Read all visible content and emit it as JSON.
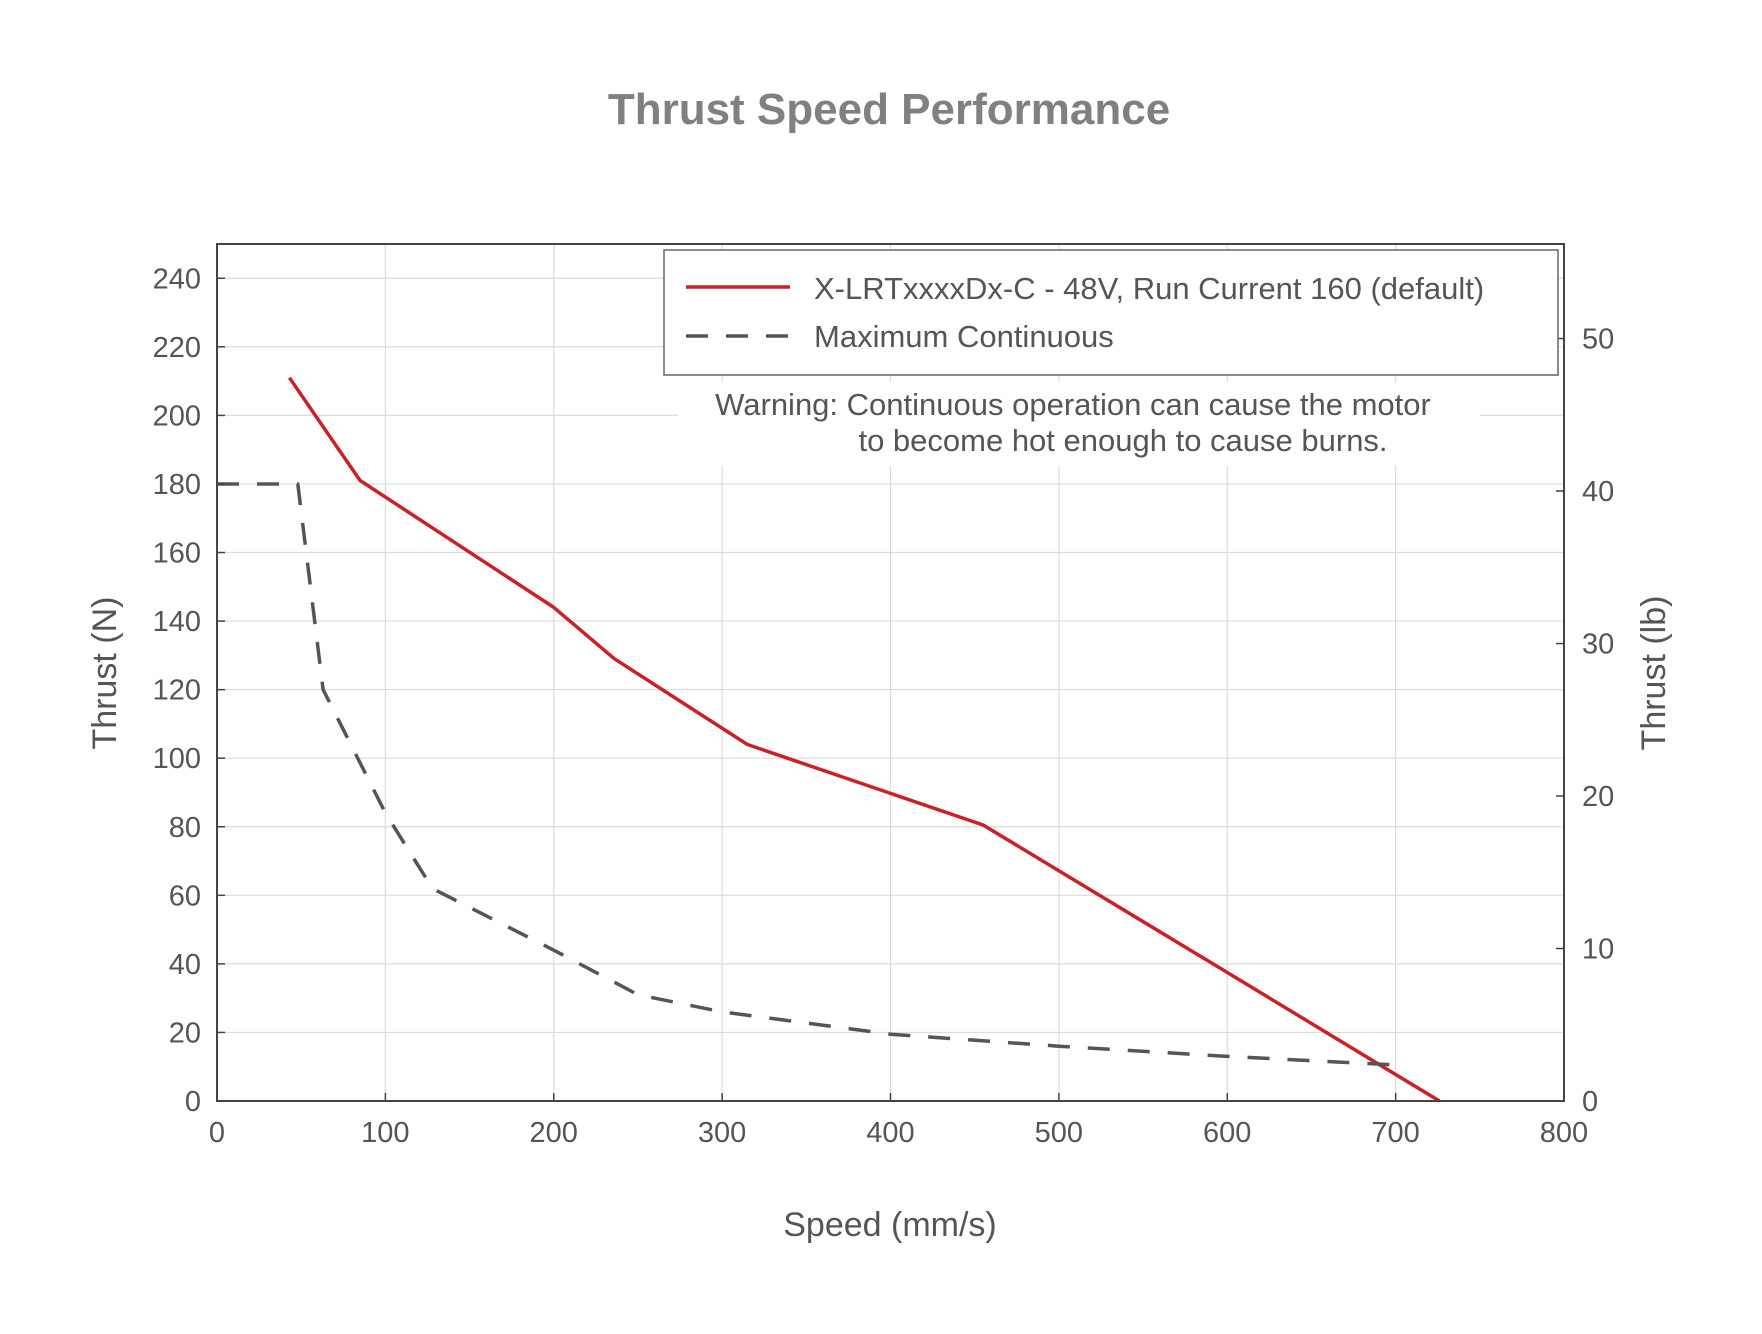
{
  "chart_data": {
    "type": "line",
    "title": "Thrust Speed Performance",
    "xlabel": "Speed (mm/s)",
    "ylabel": "Thrust (N)",
    "ylabel_right": "Thrust (lb)",
    "xlim": [
      0,
      800
    ],
    "ylim": [
      0,
      250
    ],
    "ylim_right": [
      0,
      56.2
    ],
    "x_ticks": [
      0,
      100,
      200,
      300,
      400,
      500,
      600,
      700,
      800
    ],
    "y_ticks": [
      0,
      20,
      40,
      60,
      80,
      100,
      120,
      140,
      160,
      180,
      200,
      220,
      240
    ],
    "y_ticks_right": [
      0,
      10,
      20,
      30,
      40,
      50
    ],
    "grid": true,
    "legend_position": "top-right",
    "annotation": [
      "Warning: Continuous operation can cause the motor",
      "to become hot enough to cause burns."
    ],
    "series": [
      {
        "name": "X-LRTxxxxDx-C - 48V, Run Current 160 (default)",
        "style": "solid",
        "color": "#cc2027",
        "x": [
          43,
          85,
          200,
          236,
          315,
          455,
          600,
          726
        ],
        "y": [
          211,
          181,
          144,
          129,
          104,
          80.5,
          37.5,
          0
        ]
      },
      {
        "name": "Maximum Continuous",
        "style": "dashed",
        "color": "#555555",
        "x": [
          0,
          48,
          63,
          100,
          128,
          200,
          250,
          300,
          400,
          500,
          600,
          700
        ],
        "y": [
          180,
          180,
          120,
          84,
          62,
          44,
          31,
          26,
          19.5,
          16,
          13,
          10.5
        ]
      }
    ]
  }
}
